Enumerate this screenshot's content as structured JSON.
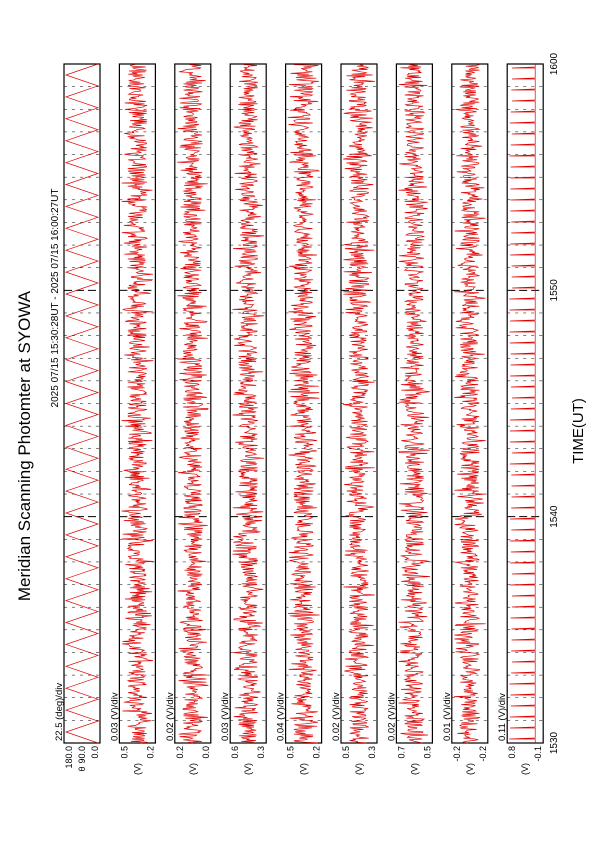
{
  "chart_data": {
    "type": "line",
    "title": "Meridian Scanning Photomter at SYOWA",
    "time_range_label": "2025 07/15 15:30:28UT - 2025 07/15 16:00:27UT",
    "xlabel": "TIME(UT)",
    "x_ticks": [
      "1530",
      "1540",
      "1550",
      "1600"
    ],
    "xlim": [
      "15:30",
      "16:00"
    ],
    "line_color": "#e00000",
    "panels": [
      {
        "scale_label": "22.5 (deg)/div",
        "channel": "θ",
        "tick_labels": [
          "0.0",
          "90.0",
          "180.0"
        ],
        "ylim": [
          0,
          180
        ],
        "pattern": "sweep"
      },
      {
        "scale_label": "0.03 (V)/div",
        "channel": "(V)",
        "tick_labels": [
          "0.2",
          "0.5"
        ],
        "ylim": [
          0.2,
          0.5
        ],
        "pattern": "noise"
      },
      {
        "scale_label": "0.02 (V)/div",
        "channel": "(V)",
        "tick_labels": [
          "0.0",
          "0.2"
        ],
        "ylim": [
          0.0,
          0.2
        ],
        "pattern": "noise"
      },
      {
        "scale_label": "0.03 (V)/div",
        "channel": "(V)",
        "tick_labels": [
          "0.3",
          "0.6"
        ],
        "ylim": [
          0.3,
          0.6
        ],
        "pattern": "noise"
      },
      {
        "scale_label": "0.04 (V)/div",
        "channel": "(V)",
        "tick_labels": [
          "0.2",
          "0.5"
        ],
        "ylim": [
          0.2,
          0.5
        ],
        "pattern": "noise"
      },
      {
        "scale_label": "0.02 (V)/div",
        "channel": "(V)",
        "tick_labels": [
          "0.3",
          "0.5"
        ],
        "ylim": [
          0.3,
          0.5
        ],
        "pattern": "noise"
      },
      {
        "scale_label": "0.02 (V)/div",
        "channel": "(V)",
        "tick_labels": [
          "0.5",
          "0.7"
        ],
        "ylim": [
          0.5,
          0.7
        ],
        "pattern": "noise"
      },
      {
        "scale_label": "0.01 (V)/div",
        "channel": "(V)",
        "tick_labels": [
          "-0.2",
          "-0.2"
        ],
        "ylim": [
          -0.25,
          -0.15
        ],
        "pattern": "noise"
      },
      {
        "scale_label": "0.11 (V)/div",
        "channel": "(V)",
        "tick_labels": [
          "-0.1",
          "0.8"
        ],
        "ylim": [
          -0.1,
          0.8
        ],
        "pattern": "spikes"
      }
    ]
  }
}
